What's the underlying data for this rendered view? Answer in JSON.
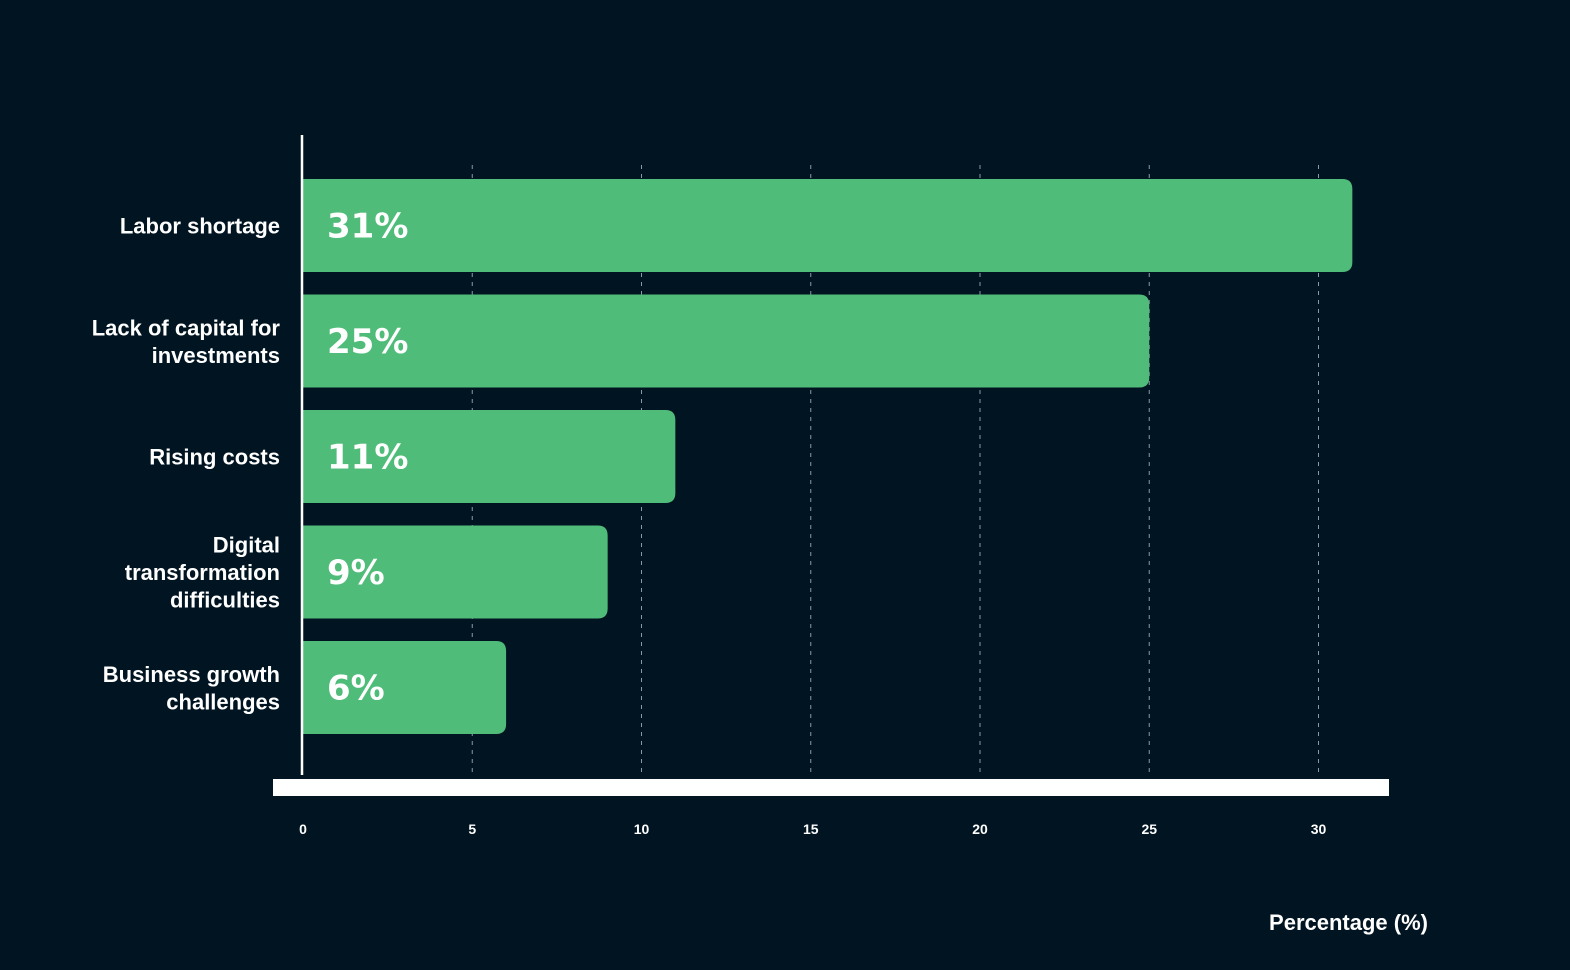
{
  "colors": {
    "background": "#011421",
    "bar": "#50bc79",
    "text": "#ffffff",
    "grid": "#8a9aa6"
  },
  "chart_data": {
    "type": "bar",
    "orientation": "horizontal",
    "categories": [
      [
        "Labor shortage"
      ],
      [
        "Lack of capital for",
        "investments"
      ],
      [
        "Rising costs"
      ],
      [
        "Digital",
        "transformation",
        "difficulties"
      ],
      [
        "Business growth",
        "challenges"
      ]
    ],
    "values": [
      31,
      25,
      11,
      9,
      6
    ],
    "value_labels": [
      "31%",
      "25%",
      "11%",
      "9%",
      "6%"
    ],
    "title": "",
    "xlabel": "Percentage (%)",
    "ylabel": "",
    "xlim": [
      0,
      32
    ],
    "xticks": [
      0,
      5,
      10,
      15,
      20,
      25,
      30
    ],
    "grid": "vertical dashed",
    "legend": "none"
  }
}
